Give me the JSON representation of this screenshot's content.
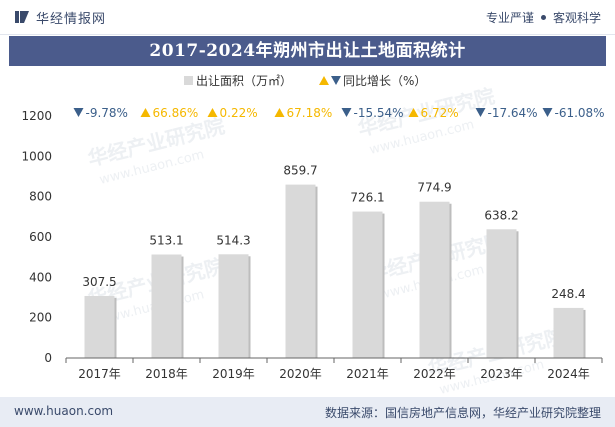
{
  "brand": {
    "name": "华经情报网",
    "tag1": "专业严谨",
    "tag2": "客观科学"
  },
  "footer": {
    "website": "www.huaon.com",
    "source": "数据来源：国信房地产信息网，华经产业研究院整理"
  },
  "watermark": {
    "text_cn": "华经产业研究院",
    "text_en": "www.huaon.com"
  },
  "colors": {
    "bar": "#d9d9d9",
    "up": "#f5b800",
    "down": "#3b5f8a",
    "title_bg": "#4b5b8c"
  },
  "chart_data": {
    "type": "bar",
    "title": "2017-2024年朔州市出让土地面积统计",
    "categories": [
      "2017年",
      "2018年",
      "2019年",
      "2020年",
      "2021年",
      "2022年",
      "2023年",
      "2024年"
    ],
    "series": [
      {
        "name": "出让面积（万㎡）",
        "values": [
          307.5,
          513.1,
          514.3,
          859.7,
          726.1,
          774.9,
          638.2,
          248.4
        ]
      },
      {
        "name": "同比增长（%）",
        "values": [
          -9.78,
          66.86,
          0.22,
          67.18,
          -15.54,
          6.72,
          -17.64,
          -61.08
        ]
      }
    ],
    "data_labels": [
      "307.5",
      "513.1",
      "514.3",
      "859.7",
      "726.1",
      "774.9",
      "638.2",
      "248.4"
    ],
    "growth_labels": [
      "-9.78%",
      "66.86%",
      "0.22%",
      "67.18%",
      "-15.54%",
      "6.72%",
      "-17.64%",
      "-61.08%"
    ],
    "yticks": [
      "0",
      "200",
      "400",
      "600",
      "800",
      "1000",
      "1200"
    ],
    "ylim": [
      0,
      1200
    ],
    "legend_position": "top",
    "grid": false
  }
}
